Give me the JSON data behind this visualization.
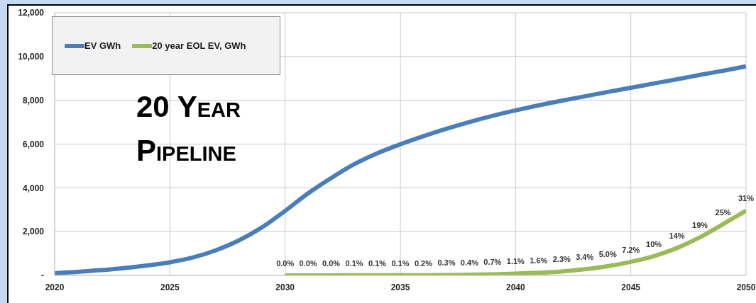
{
  "chart_data": {
    "type": "line",
    "x": [
      2020,
      2021,
      2022,
      2023,
      2024,
      2025,
      2026,
      2027,
      2028,
      2029,
      2030,
      2031,
      2032,
      2033,
      2034,
      2035,
      2036,
      2037,
      2038,
      2039,
      2040,
      2041,
      2042,
      2043,
      2044,
      2045,
      2046,
      2047,
      2048,
      2049,
      2050
    ],
    "xlim": [
      2020,
      2050
    ],
    "xticks": [
      2020,
      2025,
      2030,
      2035,
      2040,
      2045,
      2050
    ],
    "ylim": [
      0,
      12000
    ],
    "yticks": [
      {
        "value": 0,
        "label": "-"
      },
      {
        "value": 2000,
        "label": "2,000"
      },
      {
        "value": 4000,
        "label": "4,000"
      },
      {
        "value": 6000,
        "label": "6,000"
      },
      {
        "value": 8000,
        "label": "8,000"
      },
      {
        "value": 10000,
        "label": "10,000"
      },
      {
        "value": 12000,
        "label": "12,000"
      }
    ],
    "grid": true,
    "legend": "top left",
    "marker": "none",
    "line_style": "solid",
    "annotations": [
      "20 Year Pipeline",
      {
        "text": "0.0%",
        "x": 2030,
        "y": 0
      },
      {
        "text": "0.0%",
        "x": 2031,
        "y": 0
      },
      {
        "text": "0.0%",
        "x": 2032,
        "y": 0
      },
      {
        "text": "0.1%",
        "x": 2033,
        "y": 10
      },
      {
        "text": "0.1%",
        "x": 2034,
        "y": 10
      },
      {
        "text": "0.1%",
        "x": 2035,
        "y": 10
      },
      {
        "text": "0.2%",
        "x": 2036,
        "y": 10
      },
      {
        "text": "0.3%",
        "x": 2037,
        "y": 20
      },
      {
        "text": "0.4%",
        "x": 2038,
        "y": 30
      },
      {
        "text": "0.7%",
        "x": 2039,
        "y": 50
      },
      {
        "text": "1.1%",
        "x": 2040,
        "y": 80
      },
      {
        "text": "1.6%",
        "x": 2041,
        "y": 120
      },
      {
        "text": "2.3%",
        "x": 2042,
        "y": 180
      },
      {
        "text": "3.4%",
        "x": 2043,
        "y": 280
      },
      {
        "text": "5.0%",
        "x": 2044,
        "y": 420
      },
      {
        "text": "7.2%",
        "x": 2045,
        "y": 620
      },
      {
        "text": "10%",
        "x": 2046,
        "y": 880
      },
      {
        "text": "14%",
        "x": 2047,
        "y": 1250
      },
      {
        "text": "19%",
        "x": 2048,
        "y": 1740
      },
      {
        "text": "25%",
        "x": 2049,
        "y": 2340
      },
      {
        "text": "31%",
        "x": 2050,
        "y": 2960
      }
    ],
    "series": [
      {
        "name": "EV GWh",
        "color": "#4a7ebb",
        "values": [
          100,
          160,
          240,
          330,
          450,
          600,
          820,
          1150,
          1600,
          2200,
          2950,
          3750,
          4450,
          5080,
          5580,
          5990,
          6360,
          6700,
          7010,
          7290,
          7540,
          7770,
          7980,
          8180,
          8380,
          8570,
          8770,
          8960,
          9160,
          9350,
          9550
        ]
      },
      {
        "name": "20 year EOL EV, GWh",
        "color": "#9bbb59",
        "x": [
          2030,
          2031,
          2032,
          2033,
          2034,
          2035,
          2036,
          2037,
          2038,
          2039,
          2040,
          2041,
          2042,
          2043,
          2044,
          2045,
          2046,
          2047,
          2048,
          2049,
          2050
        ],
        "values": [
          0,
          0,
          0,
          10,
          10,
          10,
          10,
          20,
          30,
          50,
          80,
          120,
          180,
          280,
          420,
          620,
          880,
          1250,
          1740,
          2340,
          2960
        ]
      }
    ]
  }
}
